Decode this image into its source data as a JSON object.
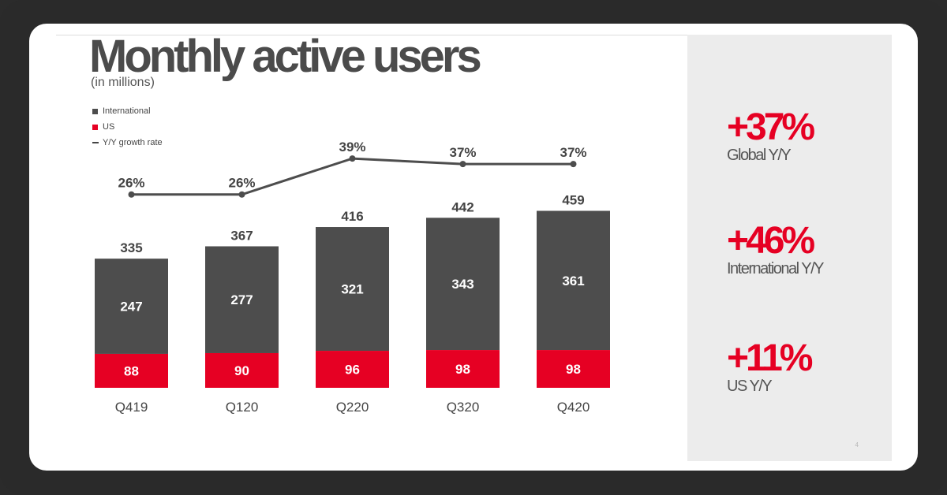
{
  "page": {
    "title": "Monthly active users",
    "subtitle": "(in millions)",
    "page_number": "4"
  },
  "legend": [
    {
      "label": "International",
      "color": "#4d4d4d",
      "kind": "box"
    },
    {
      "label": "US",
      "color": "#e60023",
      "kind": "box"
    },
    {
      "label": "Y/Y growth rate",
      "color": "#444444",
      "kind": "line"
    }
  ],
  "chart_data": {
    "type": "bar",
    "stacked": true,
    "categories": [
      "Q419",
      "Q120",
      "Q220",
      "Q320",
      "Q420"
    ],
    "series": [
      {
        "name": "US",
        "values": [
          88,
          90,
          96,
          98,
          98
        ],
        "color": "#e60023"
      },
      {
        "name": "International",
        "values": [
          247,
          277,
          321,
          343,
          361
        ],
        "color": "#4d4d4d"
      }
    ],
    "totals": [
      335,
      367,
      416,
      442,
      459
    ],
    "line_series": {
      "name": "Y/Y growth rate",
      "values": [
        26,
        26,
        39,
        37,
        37
      ],
      "labels": [
        "26%",
        "26%",
        "39%",
        "37%",
        "37%"
      ]
    },
    "ylim": [
      0,
      460
    ],
    "grid": false,
    "legend_position": "top-left"
  },
  "kpis": [
    {
      "value": "+37%",
      "label": "Global Y/Y"
    },
    {
      "value": "+46%",
      "label": "International Y/Y"
    },
    {
      "value": "+11%",
      "label": "US Y/Y"
    }
  ]
}
